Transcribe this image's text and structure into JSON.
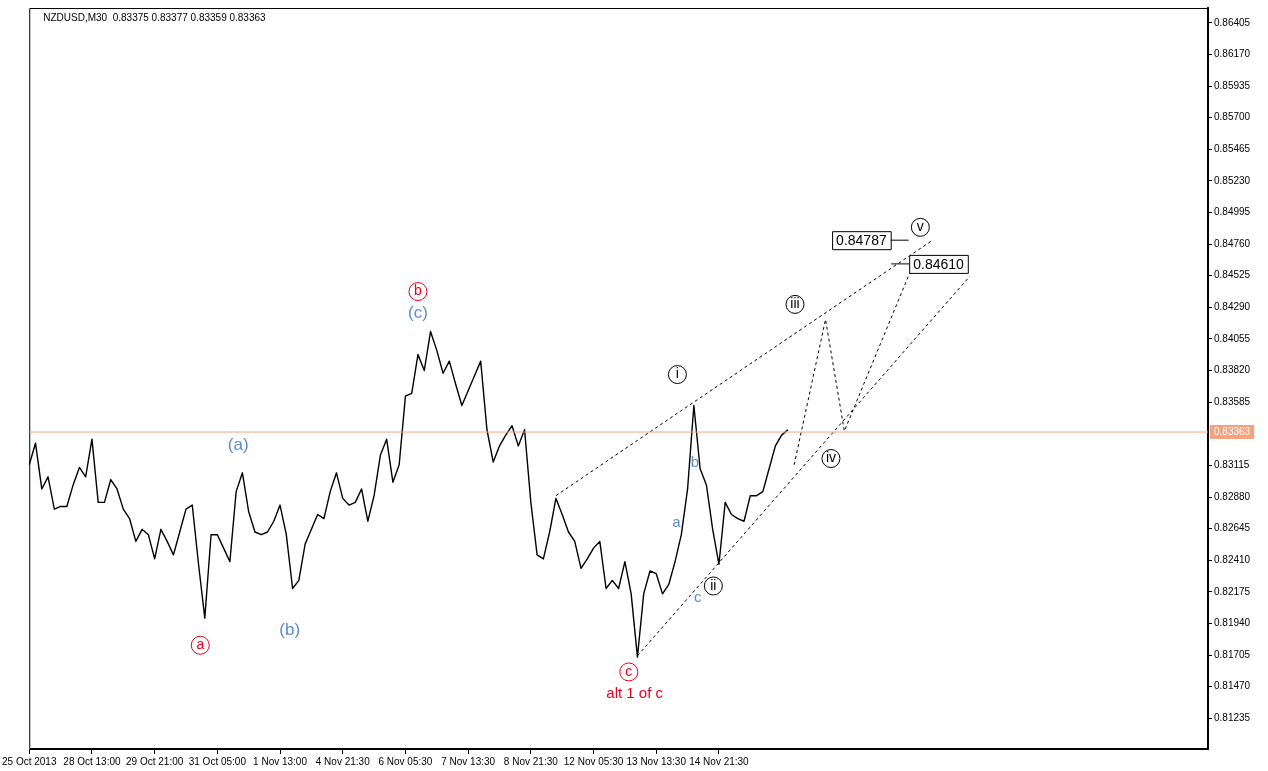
{
  "chart_data": {
    "type": "line",
    "title": "NZDUSD,M30  0.83375 0.83377 0.83359 0.83363",
    "categories": [
      "25 Oct 2013",
      null,
      null,
      null,
      null,
      null,
      null,
      null,
      null,
      null,
      "28 Oct 13:00",
      null,
      null,
      null,
      null,
      null,
      null,
      null,
      null,
      null,
      "29 Oct 21:00",
      null,
      null,
      null,
      null,
      null,
      null,
      null,
      null,
      null,
      "31 Oct 05:00",
      null,
      null,
      null,
      null,
      null,
      null,
      null,
      null,
      null,
      "1 Nov 13:00",
      null,
      null,
      null,
      null,
      null,
      null,
      null,
      null,
      null,
      "4 Nov 21:30",
      null,
      null,
      null,
      null,
      null,
      null,
      null,
      null,
      null,
      "6 Nov 05:30",
      null,
      null,
      null,
      null,
      null,
      null,
      null,
      null,
      null,
      "7 Nov 13:30",
      null,
      null,
      null,
      null,
      null,
      null,
      null,
      null,
      null,
      "8 Nov 21:30",
      null,
      null,
      null,
      null,
      null,
      null,
      null,
      null,
      null,
      "12 Nov 05:30",
      null,
      null,
      null,
      null,
      null,
      null,
      null,
      null,
      null,
      "13 Nov 13:30",
      null,
      null,
      null,
      null,
      null,
      null,
      null,
      null,
      null,
      "14 Nov 21:30",
      null,
      null,
      null,
      null,
      null,
      null,
      null,
      null,
      null,
      null,
      null,
      null,
      null,
      null,
      null,
      null,
      null,
      null,
      null,
      null,
      null,
      null,
      null,
      null,
      null,
      null,
      null,
      null,
      null,
      null,
      null,
      null,
      null,
      null,
      null,
      null,
      null,
      null,
      null,
      null,
      null,
      null,
      null,
      null,
      null,
      null,
      null,
      null,
      null,
      null,
      null,
      null,
      null,
      null,
      null,
      null,
      null,
      null,
      null,
      null,
      null,
      null,
      null,
      null,
      null,
      null,
      null,
      null,
      null,
      null,
      null,
      null,
      null,
      null,
      null,
      null,
      null,
      null
    ],
    "ylim": [
      0.81007,
      0.86515
    ],
    "yticks": [
      0.86405,
      {
        "value": 0.8617,
        "label": "0.86170"
      },
      0.85935,
      {
        "value": 0.857,
        "label": "0.85700"
      },
      0.85465,
      {
        "value": 0.8523,
        "label": "0.85230"
      },
      0.84995,
      {
        "value": 0.8476,
        "label": "0.84760"
      },
      0.84525,
      {
        "value": 0.8429,
        "label": "0.84290"
      },
      0.84055,
      {
        "value": 0.8382,
        "label": "0.83820"
      },
      0.83585,
      0.83115,
      {
        "value": 0.8288,
        "label": "0.82880"
      },
      0.82645,
      {
        "value": 0.8241,
        "label": "0.82410"
      },
      0.82175,
      {
        "value": 0.8194,
        "label": "0.81940"
      },
      0.81705,
      {
        "value": 0.8147,
        "label": "0.81470"
      },
      0.81235
    ],
    "grid": false,
    "legend": false,
    "marker": "none",
    "series": [
      {
        "color": "#000000",
        "values": [
          0.8312,
          0.8328,
          0.8294,
          0.8303,
          0.8279,
          0.8281,
          0.8281,
          0.8297,
          0.831,
          0.8303,
          0.8331,
          0.8284,
          0.8284,
          0.8301,
          0.8294,
          0.8279,
          0.8272,
          0.8255,
          0.8264,
          0.826,
          0.8242,
          0.8264,
          0.8255,
          0.8245,
          0.8262,
          0.8279,
          0.8282,
          0.8238,
          0.8198,
          0.826,
          0.826,
          0.825,
          0.824,
          0.8292,
          0.8306,
          0.8277,
          0.8262,
          0.826,
          0.8262,
          0.827,
          0.8282,
          0.826,
          0.822,
          0.8226,
          0.8253,
          0.8264,
          0.8275,
          0.8272,
          0.8292,
          0.8306,
          0.8287,
          0.8282,
          0.8284,
          0.8294,
          0.827,
          0.8289,
          0.8319,
          0.8331,
          0.8299,
          0.8312,
          0.8363,
          0.8365,
          0.8394,
          0.8382,
          0.8411,
          0.8397,
          0.838,
          0.8389,
          0.8372,
          0.8356,
          0.8367,
          0.8378,
          0.8389,
          0.8338,
          0.8314,
          0.8326,
          0.8334,
          0.8341,
          0.8326,
          0.8338,
          0.8284,
          0.8245,
          0.8242,
          0.8262,
          0.8287,
          0.8275,
          0.8262,
          0.8255,
          0.8235,
          0.8242,
          0.825,
          0.8255,
          0.822,
          0.8226,
          0.822,
          0.824,
          0.8216,
          0.8169,
          0.8216,
          0.8233,
          0.8231,
          0.8216,
          0.8223,
          0.824,
          0.826,
          0.8294,
          0.8356,
          0.8309,
          0.8297,
          0.8264,
          0.8238,
          0.8284,
          0.8275,
          0.8272,
          0.827,
          0.8289,
          0.8289,
          0.8292,
          0.8309,
          0.8326,
          0.8334,
          0.8338,
          null,
          null,
          null,
          null,
          null,
          null,
          null,
          null,
          null,
          null,
          null,
          null,
          null,
          null,
          null,
          null,
          null,
          null,
          null,
          null,
          null,
          null,
          null,
          null,
          null,
          null,
          null,
          null,
          null,
          null,
          null,
          null,
          null,
          null,
          null,
          null,
          null,
          null,
          null,
          null,
          null,
          null,
          null,
          null,
          null,
          null,
          null,
          null,
          null,
          null,
          null,
          null,
          null,
          null,
          null,
          null,
          null,
          null,
          null,
          null,
          null,
          null,
          null,
          null,
          null,
          null,
          null
        ]
      },
      {
        "color": "#000000",
        "line_style": "dashed",
        "values": [
          null,
          null,
          null,
          null,
          null,
          null,
          null,
          null,
          null,
          null,
          null,
          null,
          null,
          null,
          null,
          null,
          null,
          null,
          null,
          null,
          null,
          null,
          null,
          null,
          null,
          null,
          null,
          null,
          null,
          null,
          null,
          null,
          null,
          null,
          null,
          null,
          null,
          null,
          null,
          null,
          null,
          null,
          null,
          null,
          null,
          null,
          null,
          null,
          null,
          null,
          null,
          null,
          null,
          null,
          null,
          null,
          null,
          null,
          null,
          null,
          null,
          null,
          null,
          null,
          null,
          null,
          null,
          null,
          null,
          null,
          null,
          null,
          null,
          null,
          null,
          null,
          null,
          null,
          null,
          null,
          null,
          null,
          null,
          null,
          0.8289,
          null,
          null,
          null,
          null,
          null,
          null,
          null,
          null,
          null,
          null,
          null,
          null,
          null,
          null,
          null,
          null,
          null,
          null,
          null,
          null,
          null,
          null,
          null,
          null,
          null,
          null,
          null,
          null,
          null,
          null,
          null,
          null,
          null,
          null,
          null,
          null,
          null,
          null,
          null,
          null,
          null,
          null,
          null,
          null,
          null,
          null,
          null,
          null,
          null,
          null,
          null,
          null,
          null,
          null,
          null,
          null,
          null,
          null,
          null,
          0.84787,
          null,
          null,
          null,
          null,
          null,
          null,
          null,
          null,
          null,
          null,
          null,
          null,
          null,
          null,
          null,
          null,
          null,
          null,
          null,
          null,
          null,
          null,
          null,
          null,
          null,
          null,
          null,
          null,
          null,
          null,
          null,
          null,
          null,
          null,
          null,
          null,
          null,
          null,
          null,
          null,
          null,
          null,
          null,
          null
        ]
      },
      {
        "color": "#000000",
        "line_style": "dashed",
        "values": [
          null,
          null,
          null,
          null,
          null,
          null,
          null,
          null,
          null,
          null,
          null,
          null,
          null,
          null,
          null,
          null,
          null,
          null,
          null,
          null,
          null,
          null,
          null,
          null,
          null,
          null,
          null,
          null,
          null,
          null,
          null,
          null,
          null,
          null,
          null,
          null,
          null,
          null,
          null,
          null,
          null,
          null,
          null,
          null,
          null,
          null,
          null,
          null,
          null,
          null,
          null,
          null,
          null,
          null,
          null,
          null,
          null,
          null,
          null,
          null,
          null,
          null,
          null,
          null,
          null,
          null,
          null,
          null,
          null,
          null,
          null,
          null,
          null,
          null,
          null,
          null,
          null,
          null,
          null,
          null,
          null,
          null,
          null,
          null,
          null,
          null,
          null,
          null,
          null,
          null,
          null,
          null,
          null,
          null,
          null,
          null,
          null,
          0.817,
          null,
          null,
          null,
          null,
          null,
          null,
          null,
          null,
          null,
          null,
          null,
          null,
          null,
          null,
          null,
          null,
          null,
          null,
          null,
          null,
          null,
          null,
          null,
          null,
          null,
          null,
          null,
          null,
          null,
          null,
          null,
          null,
          null,
          null,
          null,
          null,
          null,
          null,
          null,
          null,
          null,
          null,
          null,
          null,
          null,
          null,
          null,
          null,
          null,
          null,
          null,
          null,
          0.8452,
          null,
          null,
          null,
          null,
          null,
          null,
          null,
          null,
          null,
          null,
          null,
          null,
          null,
          null,
          null,
          null,
          null,
          null,
          null,
          null,
          null,
          null,
          null,
          null,
          null,
          null,
          null,
          null,
          null,
          null,
          null,
          null,
          null,
          null,
          null,
          null,
          null,
          null
        ]
      },
      {
        "color": "#000000",
        "line_style": "dashed",
        "values": [
          null,
          null,
          null,
          null,
          null,
          null,
          null,
          null,
          null,
          null,
          null,
          null,
          null,
          null,
          null,
          null,
          null,
          null,
          null,
          null,
          null,
          null,
          null,
          null,
          null,
          null,
          null,
          null,
          null,
          null,
          null,
          null,
          null,
          null,
          null,
          null,
          null,
          null,
          null,
          null,
          null,
          null,
          null,
          null,
          null,
          null,
          null,
          null,
          null,
          null,
          null,
          null,
          null,
          null,
          null,
          null,
          null,
          null,
          null,
          null,
          null,
          null,
          null,
          null,
          null,
          null,
          null,
          null,
          null,
          null,
          null,
          null,
          null,
          null,
          null,
          null,
          null,
          null,
          null,
          null,
          null,
          null,
          null,
          null,
          null,
          null,
          null,
          null,
          null,
          null,
          null,
          null,
          null,
          null,
          null,
          null,
          null,
          null,
          null,
          null,
          null,
          null,
          null,
          null,
          null,
          null,
          null,
          null,
          null,
          null,
          null,
          null,
          null,
          null,
          null,
          null,
          null,
          null,
          null,
          null,
          null,
          null,
          0.8312,
          null,
          null,
          null,
          null,
          0.842,
          null,
          null,
          0.8337,
          null,
          null,
          null,
          null,
          null,
          null,
          null,
          null,
          null,
          null,
          0.8461,
          null,
          null,
          null,
          null,
          null,
          null,
          null,
          null,
          null,
          null,
          null,
          null,
          null,
          null,
          null,
          null,
          null,
          null,
          null,
          null,
          null,
          null,
          null,
          null,
          null,
          null,
          null,
          null,
          null,
          null,
          null,
          null,
          null,
          null,
          null,
          null,
          null,
          null,
          null,
          null,
          null,
          null,
          null,
          null,
          null,
          null,
          null
        ]
      }
    ],
    "ref_lines": [
      {
        "axis": "y",
        "value": 0.83363,
        "label": "0.83363",
        "color": "#f5a27f"
      }
    ],
    "annotations": [
      "a",
      "b",
      "(c)",
      "(a)",
      "(b)",
      "c",
      "alt 1 of c",
      "i",
      "b",
      "a",
      "c",
      "ii",
      "iii",
      "iv",
      "v",
      "0.84787",
      "0.84610"
    ]
  }
}
